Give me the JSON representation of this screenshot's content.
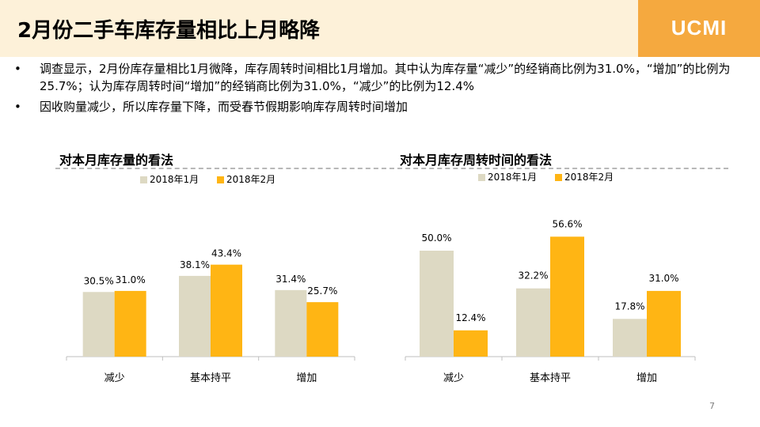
{
  "header": {
    "title": "2月份二手车库存量相比上月略降",
    "logo": "UCMI"
  },
  "bullets": [
    "调查显示，2月份库存量相比1月微降，库存周转时间相比1月增加。其中认为库存量“减少”的经销商比例为31.0%，“增加”的比例为25.7%；认为库存周转时间“增加”的经销商比例为31.0%，“减少”的比例为12.4%",
    "因收购量减少，所以库存量下降，而受春节假期影响库存周转时间增加"
  ],
  "page_number": "7",
  "colors": {
    "jan": "#ddd9c3",
    "feb": "#ffb514",
    "header_band": "#fdf1d9",
    "logo_box": "#f5a93f"
  },
  "chart_data": [
    {
      "type": "bar",
      "title": "对本月库存量的看法",
      "categories": [
        "减少",
        "基本持平",
        "增加"
      ],
      "series": [
        {
          "name": "2018年1月",
          "values": [
            30.5,
            38.1,
            31.4
          ],
          "labels": [
            "30.5%",
            "38.1%",
            "31.4%"
          ]
        },
        {
          "name": "2018年2月",
          "values": [
            31.0,
            43.4,
            25.7
          ],
          "labels": [
            "31.0%",
            "43.4%",
            "25.7%"
          ]
        }
      ],
      "legend": "top",
      "grid": false
    },
    {
      "type": "bar",
      "title": "对本月库存周转时间的看法",
      "categories": [
        "减少",
        "基本持平",
        "增加"
      ],
      "series": [
        {
          "name": "2018年1月",
          "values": [
            50.0,
            32.2,
            17.8
          ],
          "labels": [
            "50.0%",
            "32.2%",
            "17.8%"
          ]
        },
        {
          "name": "2018年2月",
          "values": [
            12.4,
            56.6,
            31.0
          ],
          "labels": [
            "12.4%",
            "56.6%",
            "31.0%"
          ]
        }
      ],
      "legend": "top",
      "grid": false
    }
  ]
}
